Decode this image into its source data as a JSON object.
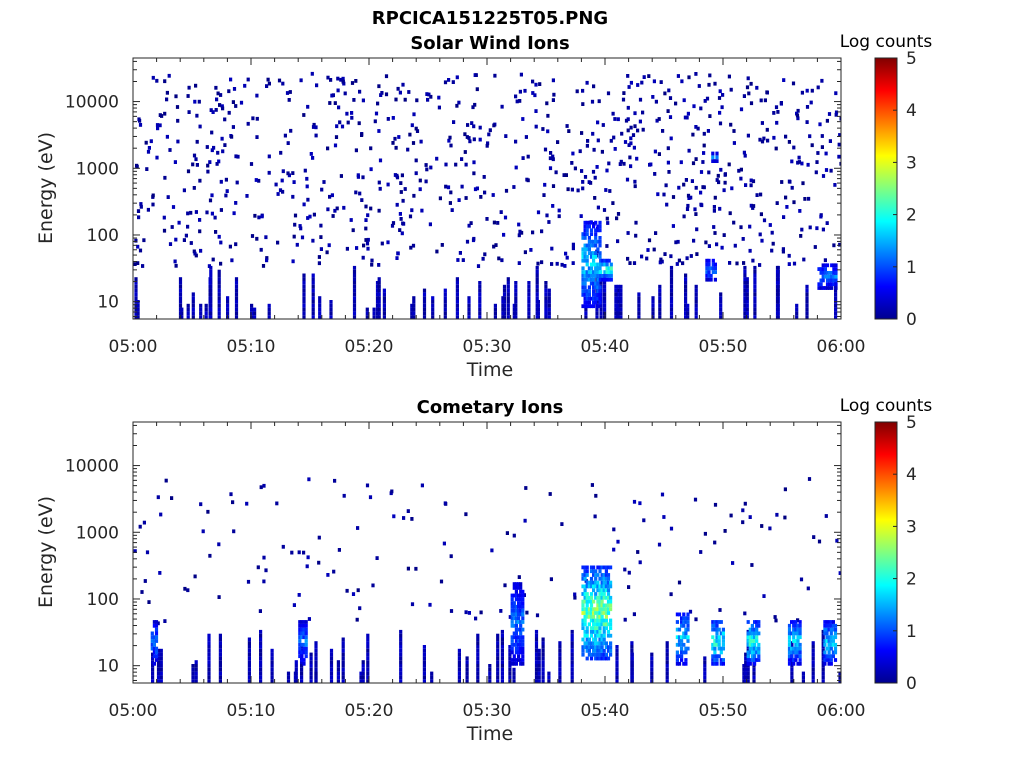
{
  "figure": {
    "title": "RPCICA151225T05.PNG",
    "colormap": "jet",
    "background": "#ffffff"
  },
  "chart_data": [
    {
      "type": "heatmap",
      "title": "Solar Wind Ions",
      "xlabel": "Time",
      "ylabel": "Energy (eV)",
      "x_range": [
        "05:00",
        "06:00"
      ],
      "x_ticks": [
        "05:00",
        "05:10",
        "05:20",
        "05:30",
        "05:40",
        "05:50",
        "06:00"
      ],
      "y_scale": "log",
      "ylim": [
        5.5,
        45000
      ],
      "y_ticks": [
        10,
        100,
        1000,
        10000
      ],
      "y_tick_labels": [
        "10",
        "100",
        "1000",
        "10000"
      ],
      "colorbar": {
        "label": "Log counts",
        "range": [
          0,
          5
        ],
        "ticks": [
          "0",
          "1",
          "2",
          "3",
          "4",
          "5"
        ]
      },
      "grid": false,
      "features": [
        {
          "t_min": 38.0,
          "t_max": 39.5,
          "e_min": 8,
          "e_max": 160,
          "log_counts_max": 2.0
        },
        {
          "t_min": 39.5,
          "t_max": 40.5,
          "e_min": 20,
          "e_max": 40,
          "log_counts_max": 2.5
        },
        {
          "t_min": 49.0,
          "t_max": 49.5,
          "e_min": 1200,
          "e_max": 1600,
          "log_counts_max": 1.5
        },
        {
          "t_min": 48.5,
          "t_max": 49.3,
          "e_min": 20,
          "e_max": 40,
          "log_counts_max": 1.5
        },
        {
          "t_min": 58.0,
          "t_max": 59.5,
          "e_min": 15,
          "e_max": 35,
          "log_counts_max": 1.5
        }
      ]
    },
    {
      "type": "heatmap",
      "title": "Cometary Ions",
      "xlabel": "Time",
      "ylabel": "Energy (eV)",
      "x_range": [
        "05:00",
        "06:00"
      ],
      "x_ticks": [
        "05:00",
        "05:10",
        "05:20",
        "05:30",
        "05:40",
        "05:50",
        "06:00"
      ],
      "y_scale": "log",
      "ylim": [
        5.5,
        45000
      ],
      "y_ticks": [
        10,
        100,
        1000,
        10000
      ],
      "y_tick_labels": [
        "10",
        "100",
        "1000",
        "10000"
      ],
      "colorbar": {
        "label": "Log counts",
        "range": [
          0,
          5
        ],
        "ticks": [
          "0",
          "1",
          "2",
          "3",
          "4",
          "5"
        ]
      },
      "grid": false,
      "features": [
        {
          "t_min": 38.0,
          "t_max": 40.5,
          "e_min": 12,
          "e_max": 280,
          "log_counts_max": 3.0
        },
        {
          "t_min": 46.0,
          "t_max": 47.0,
          "e_min": 10,
          "e_max": 60,
          "log_counts_max": 2.0
        },
        {
          "t_min": 49.0,
          "t_max": 50.0,
          "e_min": 10,
          "e_max": 45,
          "log_counts_max": 2.5
        },
        {
          "t_min": 52.0,
          "t_max": 53.0,
          "e_min": 10,
          "e_max": 45,
          "log_counts_max": 2.5
        },
        {
          "t_min": 55.5,
          "t_max": 56.5,
          "e_min": 10,
          "e_max": 45,
          "log_counts_max": 2.0
        },
        {
          "t_min": 58.5,
          "t_max": 59.5,
          "e_min": 10,
          "e_max": 45,
          "log_counts_max": 2.0
        },
        {
          "t_min": 32.0,
          "t_max": 33.0,
          "e_min": 10,
          "e_max": 160,
          "log_counts_max": 1.5
        },
        {
          "t_min": 14.0,
          "t_max": 14.6,
          "e_min": 10,
          "e_max": 45,
          "log_counts_max": 1.5
        },
        {
          "t_min": 1.5,
          "t_max": 2.0,
          "e_min": 10,
          "e_max": 45,
          "log_counts_max": 1.5
        }
      ]
    }
  ]
}
